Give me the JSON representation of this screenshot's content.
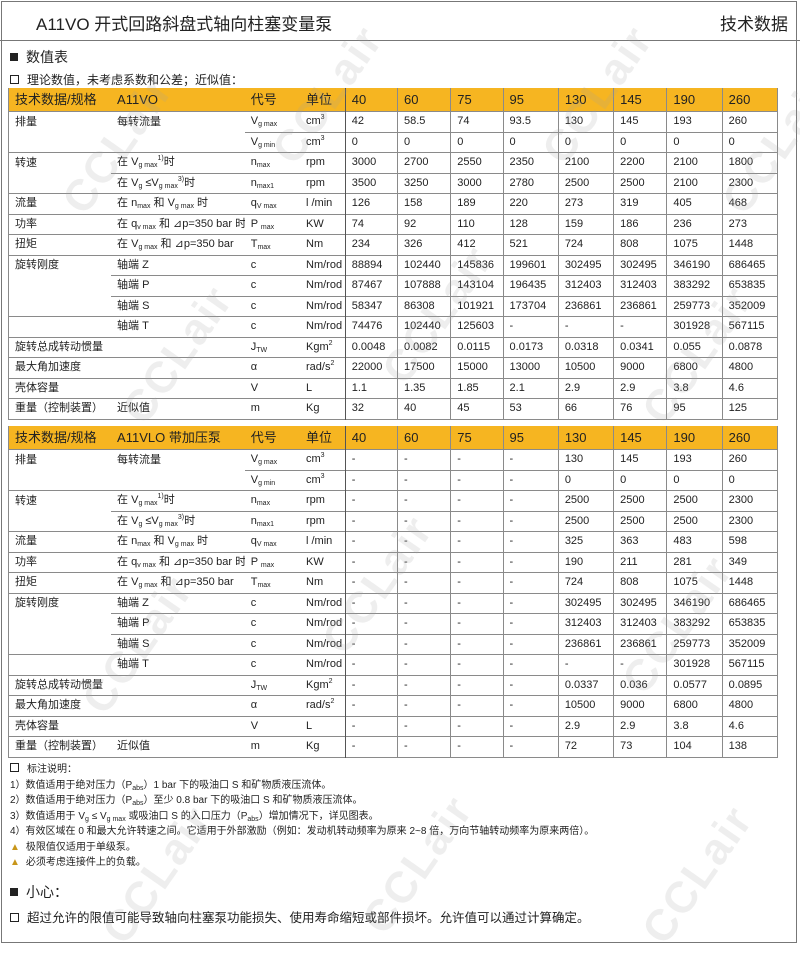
{
  "header": {
    "title": "A11VO 开式回路斜盘式轴向柱塞变量泵",
    "right": "技术数据"
  },
  "section_title": "数值表",
  "intro": "理论数值，未考虑系数和公差；近似值：",
  "watermark": "CCLair",
  "columns": {
    "param": "技术数据/规格",
    "code": "代号",
    "unit": "单位",
    "sizes": [
      "40",
      "60",
      "75",
      "95",
      "130",
      "145",
      "190",
      "260"
    ]
  },
  "colors": {
    "header_bg": "#f6b521",
    "note_bullet": "#c8961a"
  },
  "rows": [
    {
      "label": "排量",
      "cond": [
        [
          "t",
          "每转流量"
        ]
      ],
      "code": [
        [
          "t",
          "V"
        ],
        [
          "sub",
          "g max"
        ]
      ],
      "unit": [
        [
          "t",
          "cm"
        ],
        [
          "sup",
          "3"
        ]
      ],
      "start": true
    },
    {
      "label": "",
      "cond": [],
      "code": [
        [
          "t",
          "V"
        ],
        [
          "sub",
          "g min"
        ]
      ],
      "unit": [
        [
          "t",
          "cm"
        ],
        [
          "sup",
          "3"
        ]
      ],
      "start": false
    },
    {
      "label": "转速",
      "cond": [
        [
          "t",
          "在 V"
        ],
        [
          "sub",
          "g max"
        ],
        [
          "sup",
          "1)"
        ],
        [
          "t",
          "时"
        ]
      ],
      "code": [
        [
          "t",
          "n"
        ],
        [
          "sub",
          "max"
        ]
      ],
      "unit": [
        [
          "t",
          "rpm"
        ]
      ],
      "start": true
    },
    {
      "label": "",
      "cond": [
        [
          "t",
          "在 V"
        ],
        [
          "sub",
          "g"
        ],
        [
          "t",
          " ≤V"
        ],
        [
          "sub",
          "g max"
        ],
        [
          "sup",
          "3)"
        ],
        [
          "t",
          "时"
        ]
      ],
      "code": [
        [
          "t",
          "n"
        ],
        [
          "sub",
          "max1"
        ]
      ],
      "unit": [
        [
          "t",
          "rpm"
        ]
      ],
      "start": false
    },
    {
      "label": "流量",
      "cond": [
        [
          "t",
          "在 n"
        ],
        [
          "sub",
          "max"
        ],
        [
          "t",
          " 和 V"
        ],
        [
          "sub",
          "g max"
        ],
        [
          "t",
          " 时"
        ]
      ],
      "code": [
        [
          "t",
          "q"
        ],
        [
          "sub",
          "V max"
        ]
      ],
      "unit": [
        [
          "t",
          "l /min"
        ]
      ],
      "start": true
    },
    {
      "label": "功率",
      "cond": [
        [
          "t",
          "在 q"
        ],
        [
          "sub",
          "v max"
        ],
        [
          "t",
          " 和 ⊿p=350 bar 时"
        ]
      ],
      "code": [
        [
          "t",
          "P "
        ],
        [
          "sub",
          "max"
        ]
      ],
      "unit": [
        [
          "t",
          "KW"
        ]
      ],
      "start": true
    },
    {
      "label": "扭矩",
      "cond": [
        [
          "t",
          "在 V"
        ],
        [
          "sub",
          "g max"
        ],
        [
          "t",
          " 和 ⊿p=350 bar"
        ]
      ],
      "code": [
        [
          "t",
          "T"
        ],
        [
          "sub",
          "max"
        ]
      ],
      "unit": [
        [
          "t",
          "Nm"
        ]
      ],
      "start": true
    },
    {
      "label": "旋转刚度",
      "cond": [
        [
          "t",
          "轴端 Z"
        ]
      ],
      "code": [
        [
          "t",
          "c"
        ]
      ],
      "unit": [
        [
          "t",
          "Nm/rod"
        ]
      ],
      "start": true
    },
    {
      "label": "",
      "cond": [
        [
          "t",
          "轴端 P"
        ]
      ],
      "code": [
        [
          "t",
          "c"
        ]
      ],
      "unit": [
        [
          "t",
          "Nm/rod"
        ]
      ],
      "start": false
    },
    {
      "label": "",
      "cond": [
        [
          "t",
          "轴端 S"
        ]
      ],
      "code": [
        [
          "t",
          "c"
        ]
      ],
      "unit": [
        [
          "t",
          "Nm/rod"
        ]
      ],
      "start": false
    },
    {
      "label": "",
      "cond": [
        [
          "t",
          "轴端 T"
        ]
      ],
      "code": [
        [
          "t",
          "c"
        ]
      ],
      "unit": [
        [
          "t",
          "Nm/rod"
        ]
      ],
      "start": true
    },
    {
      "label": "旋转总成转动惯量",
      "cond": [],
      "code": [
        [
          "t",
          "J"
        ],
        [
          "sub",
          "TW"
        ]
      ],
      "unit": [
        [
          "t",
          "Kgm"
        ],
        [
          "sup",
          "2"
        ]
      ],
      "start": true
    },
    {
      "label": "最大角加速度",
      "cond": [],
      "code": [
        [
          "t",
          "  α"
        ]
      ],
      "unit": [
        [
          "t",
          "rad/s"
        ],
        [
          "sup",
          "2"
        ]
      ],
      "start": true
    },
    {
      "label": "壳体容量",
      "cond": [],
      "code": [
        [
          "t",
          "V"
        ]
      ],
      "unit": [
        [
          "t",
          "L"
        ]
      ],
      "start": true
    },
    {
      "label": "重量（控制装置）",
      "cond": [
        [
          "t",
          "近似值"
        ]
      ],
      "code": [
        [
          "t",
          "m"
        ]
      ],
      "unit": [
        [
          "t",
          "Kg"
        ]
      ],
      "start": true
    }
  ],
  "tables": [
    {
      "product": "A11VO",
      "values": [
        [
          "42",
          "58.5",
          "74",
          "93.5",
          "130",
          "145",
          "193",
          "260"
        ],
        [
          "0",
          "0",
          "0",
          "0",
          "0",
          "0",
          "0",
          "0"
        ],
        [
          "3000",
          "2700",
          "2550",
          "2350",
          "2100",
          "2200",
          "2100",
          "1800"
        ],
        [
          "3500",
          "3250",
          "3000",
          "2780",
          "2500",
          "2500",
          "2100",
          "2300"
        ],
        [
          "126",
          "158",
          "189",
          "220",
          "273",
          "319",
          "405",
          "468"
        ],
        [
          "74",
          "92",
          "110",
          "128",
          "159",
          "186",
          "236",
          "273"
        ],
        [
          "234",
          "326",
          "412",
          "521",
          "724",
          "808",
          "1075",
          "1448"
        ],
        [
          "88894",
          "102440",
          "145836",
          "199601",
          "302495",
          "302495",
          "346190",
          "686465"
        ],
        [
          "87467",
          "107888",
          "143104",
          "196435",
          "312403",
          "312403",
          "383292",
          "653835"
        ],
        [
          "58347",
          "86308",
          "101921",
          "173704",
          "236861",
          "236861",
          "259773",
          "352009"
        ],
        [
          "74476",
          "102440",
          "125603",
          "-",
          "-",
          "-",
          "301928",
          "567115"
        ],
        [
          "0.0048",
          "0.0082",
          "0.0115",
          "0.0173",
          "0.0318",
          "0.0341",
          "0.055",
          "0.0878"
        ],
        [
          "22000",
          "17500",
          "15000",
          "13000",
          "10500",
          "9000",
          "6800",
          "4800"
        ],
        [
          "1.1",
          "1.35",
          "1.85",
          "2.1",
          "2.9",
          "2.9",
          "3.8",
          "4.6"
        ],
        [
          "32",
          "40",
          "45",
          "53",
          "66",
          "76",
          "95",
          "125"
        ]
      ]
    },
    {
      "product": "A11VLO 带加压泵",
      "values": [
        [
          "-",
          "-",
          "-",
          "-",
          "130",
          "145",
          "193",
          "260"
        ],
        [
          "-",
          "-",
          "-",
          "-",
          "0",
          "0",
          "0",
          "0"
        ],
        [
          "-",
          "-",
          "-",
          "-",
          "2500",
          "2500",
          "2500",
          "2300"
        ],
        [
          "-",
          "-",
          "-",
          "-",
          "2500",
          "2500",
          "2500",
          "2300"
        ],
        [
          "-",
          "-",
          "-",
          "-",
          "325",
          "363",
          "483",
          "598"
        ],
        [
          "-",
          "-",
          "-",
          "-",
          "190",
          "211",
          "281",
          "349"
        ],
        [
          "-",
          "-",
          "-",
          "-",
          "724",
          "808",
          "1075",
          "1448"
        ],
        [
          "-",
          "-",
          "-",
          "-",
          "302495",
          "302495",
          "346190",
          "686465"
        ],
        [
          "-",
          "-",
          "-",
          "-",
          "312403",
          "312403",
          "383292",
          "653835"
        ],
        [
          "-",
          "-",
          "-",
          "-",
          "236861",
          "236861",
          "259773",
          "352009"
        ],
        [
          "-",
          "-",
          "-",
          "-",
          "-",
          "-",
          "301928",
          "567115"
        ],
        [
          "-",
          "-",
          "-",
          "-",
          "0.0337",
          "0.036",
          "0.0577",
          "0.0895"
        ],
        [
          "-",
          "-",
          "-",
          "-",
          "10500",
          "9000",
          "6800",
          "4800"
        ],
        [
          "-",
          "-",
          "-",
          "-",
          "2.9",
          "2.9",
          "3.8",
          "4.6"
        ],
        [
          "-",
          "-",
          "-",
          "-",
          "72",
          "73",
          "104",
          "138"
        ]
      ]
    }
  ],
  "notes": {
    "title": "标注说明：",
    "items": [
      [
        [
          "t",
          "1）数值适用于绝对压力（P"
        ],
        [
          "sub",
          "abs"
        ],
        [
          "t",
          "）1 bar 下的吸油口 S 和矿物质液压流体。"
        ]
      ],
      [
        [
          "t",
          "2）数值适用于绝对压力（P"
        ],
        [
          "sub",
          "abs"
        ],
        [
          "t",
          "）至少 0.8 bar 下的吸油口 S 和矿物质液压流体。"
        ]
      ],
      [
        [
          "t",
          "3）数值适用于 V"
        ],
        [
          "sub",
          "g"
        ],
        [
          "t",
          " ≤ V"
        ],
        [
          "sub",
          "g max"
        ],
        [
          "t",
          " 或吸油口 S 的入口压力（P"
        ],
        [
          "sub",
          "abs"
        ],
        [
          "t",
          "）增加情况下，详见图表。"
        ]
      ],
      [
        [
          "t",
          "4）有效区域在 0 和最大允许转速之间。它适用于外部激励（例如：发动机转动频率为原来 2~8 倍，万向节轴转动频率为原来两倍）。"
        ]
      ]
    ],
    "bullets": [
      "极限值仅适用于单级泵。",
      "必须考虑连接件上的负载。"
    ],
    "bullet_icon": "warning-arrow-icon"
  },
  "caution": {
    "title": "小心：",
    "text": "超过允许的限值可能导致轴向柱塞泵功能损失、使用寿命缩短或部件损坏。允许值可以通过计算确定。"
  }
}
